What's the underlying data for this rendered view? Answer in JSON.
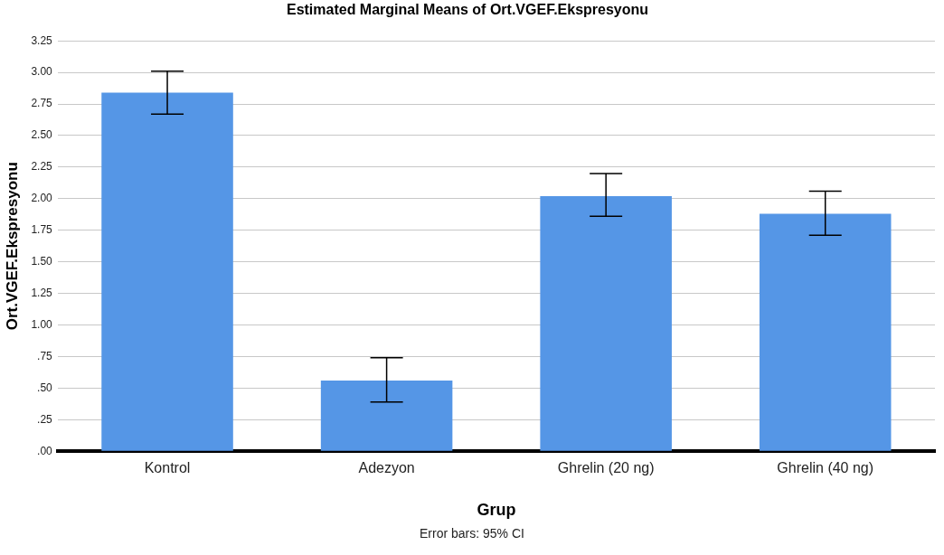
{
  "chart_data": {
    "type": "bar",
    "title": "Estimated Marginal Means of Ort.VGEF.Ekspresyonu",
    "xlabel": "Grup",
    "ylabel": "Ort.VGEF.Ekspresyonu",
    "categories": [
      "Kontrol",
      "Adezyon",
      "Ghrelin (20 ng)",
      "Ghrelin (40 ng)"
    ],
    "values": [
      2.84,
      0.56,
      2.02,
      1.88
    ],
    "errors": [
      [
        2.67,
        3.01
      ],
      [
        0.39,
        0.74
      ],
      [
        1.86,
        2.2
      ],
      [
        1.71,
        2.06
      ]
    ],
    "color": "#5596e6",
    "ylim": [
      0,
      3.25
    ],
    "yticks": [
      {
        "value": 0,
        "label": ".00"
      },
      {
        "value": 0.25,
        "label": ".25"
      },
      {
        "value": 0.5,
        "label": ".50"
      },
      {
        "value": 0.75,
        "label": ".75"
      },
      {
        "value": 1,
        "label": "1.00"
      },
      {
        "value": 1.25,
        "label": "1.25"
      },
      {
        "value": 1.5,
        "label": "1.50"
      },
      {
        "value": 1.75,
        "label": "1.75"
      },
      {
        "value": 2,
        "label": "2.00"
      },
      {
        "value": 2.25,
        "label": "2.25"
      },
      {
        "value": 2.5,
        "label": "2.50"
      },
      {
        "value": 2.75,
        "label": "2.75"
      },
      {
        "value": 3,
        "label": "3.00"
      },
      {
        "value": 3.25,
        "label": "3.25"
      }
    ],
    "grid": "y",
    "legend": false,
    "annotations": [
      "Error bars: 95% CI"
    ]
  }
}
